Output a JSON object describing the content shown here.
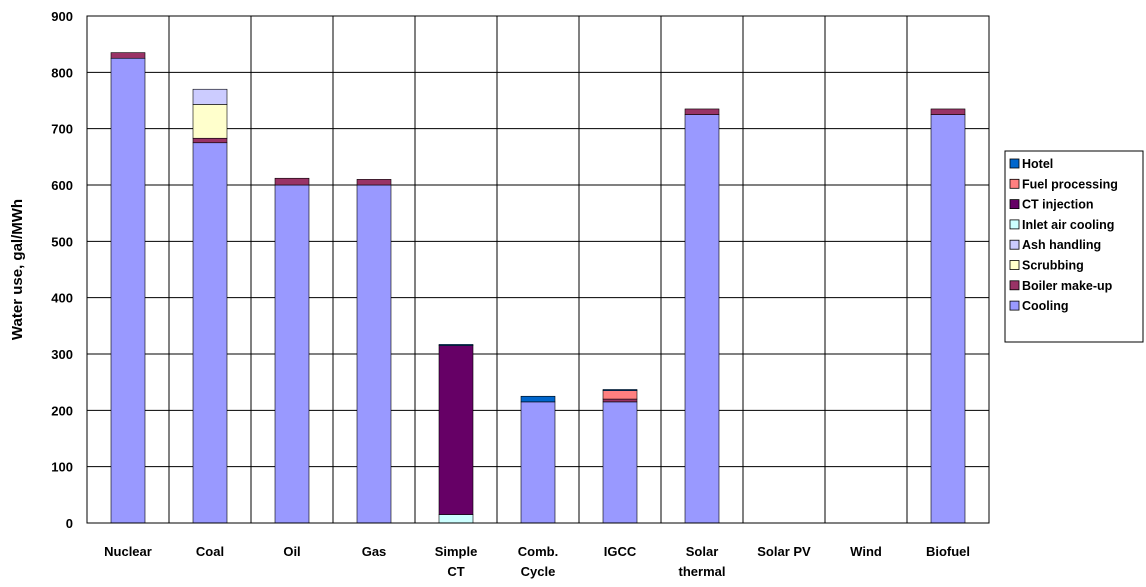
{
  "chart_data": {
    "type": "bar",
    "stacked": true,
    "title": "",
    "xlabel": "",
    "ylabel": "Water use, gal/MWh",
    "ylim": [
      0,
      900
    ],
    "yticks": [
      0,
      100,
      200,
      300,
      400,
      500,
      600,
      700,
      800,
      900
    ],
    "grid": true,
    "legend_position": "right",
    "categories": [
      [
        "Nuclear"
      ],
      [
        "Coal"
      ],
      [
        "Oil"
      ],
      [
        "Gas"
      ],
      [
        "Simple",
        "CT"
      ],
      [
        "Comb.",
        "Cycle"
      ],
      [
        "IGCC"
      ],
      [
        "Solar",
        "thermal"
      ],
      [
        "Solar PV"
      ],
      [
        "Wind"
      ],
      [
        "Biofuel"
      ]
    ],
    "series": [
      {
        "name": "Cooling",
        "color": "#9999ff",
        "values": [
          825,
          675,
          600,
          600,
          0,
          215,
          215,
          725,
          0,
          0,
          725
        ]
      },
      {
        "name": "Boiler make-up",
        "color": "#993366",
        "values": [
          10,
          8,
          12,
          10,
          0,
          0,
          5,
          10,
          0,
          0,
          10
        ]
      },
      {
        "name": "Scrubbing",
        "color": "#ffffcc",
        "values": [
          0,
          60,
          0,
          0,
          0,
          0,
          0,
          0,
          0,
          0,
          0
        ]
      },
      {
        "name": "Ash handling",
        "color": "#ccccff",
        "values": [
          0,
          27,
          0,
          0,
          0,
          0,
          0,
          0,
          0,
          0,
          0
        ]
      },
      {
        "name": "Inlet air cooling",
        "color": "#ccffff",
        "values": [
          0,
          0,
          0,
          0,
          15,
          0,
          0,
          0,
          0,
          0,
          0
        ]
      },
      {
        "name": "CT injection",
        "color": "#660066",
        "values": [
          0,
          0,
          0,
          0,
          300,
          0,
          0,
          0,
          0,
          0,
          0
        ]
      },
      {
        "name": "Fuel processing",
        "color": "#ff8080",
        "values": [
          0,
          0,
          0,
          0,
          0,
          0,
          15,
          0,
          0,
          0,
          0
        ]
      },
      {
        "name": "Hotel",
        "color": "#0066cc",
        "values": [
          0,
          0,
          0,
          0,
          2,
          10,
          2,
          0,
          0,
          0,
          0
        ]
      }
    ]
  }
}
